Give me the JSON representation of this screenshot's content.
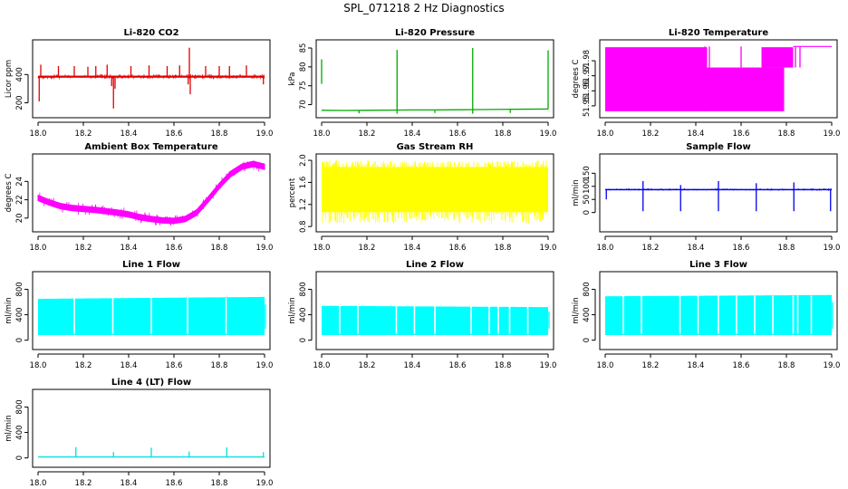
{
  "figure_title": "SPL_071218  2 Hz Diagnostics",
  "chart_data": [
    {
      "type": "line",
      "title": "Li-820 CO2",
      "ylabel": "Licor ppm",
      "color": "#e00000",
      "xlim": [
        18.0,
        19.0
      ],
      "ylim": [
        120,
        620
      ],
      "xticks": [
        18.0,
        18.2,
        18.4,
        18.6,
        18.8,
        19.0
      ],
      "xtick_labels": [
        "18.0",
        "18.2",
        "18.4",
        "18.6",
        "18.8",
        "19.0"
      ],
      "yticks": [
        200,
        400
      ],
      "ytick_labels": [
        "200",
        "400"
      ],
      "series": {
        "kind": "noise_band",
        "x_start": 18.0,
        "x_end": 19.0,
        "center": 385,
        "half_width": 18,
        "noise_seed": 11,
        "noise_count": 330
      },
      "spikes": [
        {
          "x": 18.005,
          "y0": 385,
          "y1": 210
        },
        {
          "x": 18.012,
          "y0": 385,
          "y1": 470
        },
        {
          "x": 18.09,
          "y0": 385,
          "y1": 460
        },
        {
          "x": 18.16,
          "y0": 385,
          "y1": 460
        },
        {
          "x": 18.22,
          "y0": 385,
          "y1": 455
        },
        {
          "x": 18.255,
          "y0": 385,
          "y1": 460
        },
        {
          "x": 18.305,
          "y0": 385,
          "y1": 470
        },
        {
          "x": 18.325,
          "y0": 385,
          "y1": 318
        },
        {
          "x": 18.333,
          "y0": 385,
          "y1": 160
        },
        {
          "x": 18.34,
          "y0": 385,
          "y1": 300
        },
        {
          "x": 18.41,
          "y0": 385,
          "y1": 460
        },
        {
          "x": 18.49,
          "y0": 385,
          "y1": 465
        },
        {
          "x": 18.57,
          "y0": 385,
          "y1": 460
        },
        {
          "x": 18.625,
          "y0": 385,
          "y1": 465
        },
        {
          "x": 18.663,
          "y0": 385,
          "y1": 330
        },
        {
          "x": 18.668,
          "y0": 385,
          "y1": 590
        },
        {
          "x": 18.672,
          "y0": 385,
          "y1": 260
        },
        {
          "x": 18.74,
          "y0": 385,
          "y1": 460
        },
        {
          "x": 18.8,
          "y0": 385,
          "y1": 460
        },
        {
          "x": 18.845,
          "y0": 385,
          "y1": 460
        },
        {
          "x": 18.92,
          "y0": 385,
          "y1": 465
        },
        {
          "x": 18.995,
          "y0": 385,
          "y1": 330
        }
      ]
    },
    {
      "type": "line",
      "title": "Li-820 Pressure",
      "ylabel": "kPa",
      "color": "#00aa00",
      "xlim": [
        18.0,
        19.0
      ],
      "ylim": [
        67.5,
        86.2
      ],
      "xticks": [
        18.0,
        18.2,
        18.4,
        18.6,
        18.8,
        19.0
      ],
      "xtick_labels": [
        "18.0",
        "18.2",
        "18.4",
        "18.6",
        "18.8",
        "19.0"
      ],
      "yticks": [
        70,
        75,
        80,
        85
      ],
      "ytick_labels": [
        "70",
        "75",
        "80",
        "85"
      ],
      "series": {
        "kind": "path",
        "x": [
          18.0,
          18.1,
          18.2,
          18.3,
          18.4,
          18.5,
          18.6,
          18.7,
          18.8,
          18.9,
          19.0
        ],
        "y": [
          68.5,
          68.45,
          68.5,
          68.55,
          68.6,
          68.6,
          68.65,
          68.7,
          68.75,
          68.8,
          68.85
        ]
      },
      "spikes": [
        {
          "x": 18.0,
          "y0": 75.5,
          "y1": 82.0
        },
        {
          "x": 18.165,
          "y0": 68.5,
          "y1": 67.7
        },
        {
          "x": 18.333,
          "y0": 68.5,
          "y1": 84.5
        },
        {
          "x": 18.333,
          "y0": 68.5,
          "y1": 67.6
        },
        {
          "x": 18.5,
          "y0": 68.6,
          "y1": 67.8
        },
        {
          "x": 18.667,
          "y0": 68.6,
          "y1": 85.0
        },
        {
          "x": 18.667,
          "y0": 68.6,
          "y1": 67.6
        },
        {
          "x": 18.833,
          "y0": 68.7,
          "y1": 67.8
        },
        {
          "x": 19.0,
          "y0": 68.8,
          "y1": 84.4
        }
      ]
    },
    {
      "type": "line",
      "title": "Li-820 Temperature",
      "ylabel": "degrees C",
      "color": "#ff00ff",
      "xlim": [
        18.0,
        19.0
      ],
      "ylim": [
        51.9445,
        51.9915
      ],
      "xticks": [
        18.0,
        18.2,
        18.4,
        18.6,
        18.8,
        19.0
      ],
      "xtick_labels": [
        "18.0",
        "18.2",
        "18.4",
        "18.6",
        "18.8",
        "19.0"
      ],
      "yticks": [
        51.95,
        51.96,
        51.97,
        51.98
      ],
      "ytick_labels": [
        "51.95",
        "51.96",
        "51.97",
        "51.98"
      ],
      "fills": [
        {
          "x0": 18.0,
          "x1": 18.45,
          "y0": 51.9464,
          "y1": 51.989
        },
        {
          "x0": 18.45,
          "x1": 18.79,
          "y0": 51.9464,
          "y1": 51.9755
        },
        {
          "x0": 18.69,
          "x1": 18.83,
          "y0": 51.9755,
          "y1": 51.989
        }
      ],
      "hlines": [
        {
          "x0": 18.83,
          "x1": 19.0,
          "y": 51.9895
        }
      ],
      "spikes": [
        {
          "x": 18.44,
          "y0": 51.9464,
          "y1": 51.9895
        },
        {
          "x": 18.46,
          "y0": 51.9755,
          "y1": 51.9895
        },
        {
          "x": 18.6,
          "y0": 51.9755,
          "y1": 51.9895
        },
        {
          "x": 18.84,
          "y0": 51.9755,
          "y1": 51.9895
        },
        {
          "x": 18.86,
          "y0": 51.9755,
          "y1": 51.9895
        }
      ]
    },
    {
      "type": "area",
      "title": "Ambient Box Temperature",
      "ylabel": "degrees C",
      "color": "#ff00ff",
      "xlim": [
        18.0,
        19.0
      ],
      "ylim": [
        18.9,
        26.6
      ],
      "xticks": [
        18.0,
        18.2,
        18.4,
        18.6,
        18.8,
        19.0
      ],
      "xtick_labels": [
        "18.0",
        "18.2",
        "18.4",
        "18.6",
        "18.8",
        "19.0"
      ],
      "yticks": [
        20,
        22,
        24
      ],
      "ytick_labels": [
        "20",
        "22",
        "24"
      ],
      "series": {
        "kind": "band",
        "x": [
          18.0,
          18.05,
          18.1,
          18.15,
          18.2,
          18.25,
          18.3,
          18.35,
          18.4,
          18.45,
          18.5,
          18.55,
          18.6,
          18.65,
          18.7,
          18.75,
          18.8,
          18.85,
          18.9,
          18.95,
          19.0
        ],
        "center": [
          22.2,
          21.7,
          21.3,
          21.1,
          21.0,
          20.9,
          20.75,
          20.6,
          20.4,
          20.1,
          19.9,
          19.75,
          19.7,
          19.9,
          20.6,
          22.0,
          23.5,
          24.8,
          25.6,
          25.9,
          25.6
        ],
        "half_width": 0.3,
        "noise_seed": 7,
        "noise_count": 180
      }
    },
    {
      "type": "line",
      "title": "Gas Stream RH",
      "ylabel": "percent",
      "color": "#ffff00",
      "xlim": [
        18.0,
        19.0
      ],
      "ylim": [
        0.77,
        2.05
      ],
      "xticks": [
        18.0,
        18.2,
        18.4,
        18.6,
        18.8,
        19.0
      ],
      "xtick_labels": [
        "18.0",
        "18.2",
        "18.4",
        "18.6",
        "18.8",
        "19.0"
      ],
      "yticks": [
        0.8,
        1.2,
        1.6,
        2.0
      ],
      "ytick_labels": [
        "0.8",
        "1.2",
        "1.6",
        "2.0"
      ],
      "fills": [
        {
          "x0": 18.0,
          "x1": 19.0,
          "y0": 1.06,
          "y1": 1.88
        }
      ],
      "series": {
        "kind": "noise_lines",
        "x_start": 18.0,
        "x_end": 19.0,
        "lo": 0.85,
        "hi": 2.0,
        "mid_lo": 1.06,
        "mid_hi": 1.88,
        "noise_seed": 3,
        "noise_count": 420
      }
    },
    {
      "type": "line",
      "title": "Sample Flow",
      "ylabel": "ml/min",
      "color": "#0000ee",
      "xlim": [
        18.0,
        19.0
      ],
      "ylim": [
        -60,
        210
      ],
      "xticks": [
        18.0,
        18.2,
        18.4,
        18.6,
        18.8,
        19.0
      ],
      "xtick_labels": [
        "18.0",
        "18.2",
        "18.4",
        "18.6",
        "18.8",
        "19.0"
      ],
      "yticks": [
        0,
        50,
        100,
        150
      ],
      "ytick_labels": [
        "0",
        "50",
        "100",
        "150"
      ],
      "series": {
        "kind": "noise_band",
        "x_start": 18.0,
        "x_end": 19.0,
        "center": 88,
        "half_width": 5,
        "noise_seed": 5,
        "noise_count": 260
      },
      "spikes": [
        {
          "x": 18.005,
          "y0": 88,
          "y1": 50
        },
        {
          "x": 18.167,
          "y0": 88,
          "y1": 120
        },
        {
          "x": 18.167,
          "y0": 88,
          "y1": 5
        },
        {
          "x": 18.333,
          "y0": 88,
          "y1": 105
        },
        {
          "x": 18.333,
          "y0": 88,
          "y1": 5
        },
        {
          "x": 18.5,
          "y0": 88,
          "y1": 120
        },
        {
          "x": 18.5,
          "y0": 88,
          "y1": 5
        },
        {
          "x": 18.667,
          "y0": 88,
          "y1": 112
        },
        {
          "x": 18.667,
          "y0": 88,
          "y1": 5
        },
        {
          "x": 18.833,
          "y0": 88,
          "y1": 115
        },
        {
          "x": 18.833,
          "y0": 88,
          "y1": 5
        },
        {
          "x": 18.995,
          "y0": 88,
          "y1": 5
        }
      ]
    },
    {
      "type": "area",
      "title": "Line 1 Flow",
      "ylabel": "ml/min",
      "color": "#00ffff",
      "xlim": [
        18.0,
        19.0
      ],
      "ylim": [
        -90,
        1020
      ],
      "xticks": [
        18.0,
        18.2,
        18.4,
        18.6,
        18.8,
        19.0
      ],
      "xtick_labels": [
        "18.0",
        "18.2",
        "18.4",
        "18.6",
        "18.8",
        "19.0"
      ],
      "yticks": [
        0,
        400,
        800
      ],
      "ytick_labels": [
        "0",
        "400",
        "800"
      ],
      "series": {
        "kind": "block",
        "x_start": 18.0,
        "x_end": 19.0,
        "lo": 80,
        "hi": 650,
        "hi_end": 680,
        "gaps": [
          18.16,
          18.33,
          18.5,
          18.66,
          18.83
        ],
        "right_tail": 560
      }
    },
    {
      "type": "area",
      "title": "Line 2 Flow",
      "ylabel": "ml/min",
      "color": "#00ffff",
      "xlim": [
        18.0,
        19.0
      ],
      "ylim": [
        -90,
        1020
      ],
      "xticks": [
        18.0,
        18.2,
        18.4,
        18.6,
        18.8,
        19.0
      ],
      "xtick_labels": [
        "18.0",
        "18.2",
        "18.4",
        "18.6",
        "18.8",
        "19.0"
      ],
      "yticks": [
        0,
        400,
        800
      ],
      "ytick_labels": [
        "0",
        "400",
        "800"
      ],
      "series": {
        "kind": "block",
        "x_start": 18.0,
        "x_end": 19.0,
        "lo": 80,
        "hi": 540,
        "hi_end": 520,
        "gaps": [
          18.08,
          18.16,
          18.33,
          18.41,
          18.5,
          18.66,
          18.74,
          18.78,
          18.83,
          18.91
        ],
        "right_tail": 450
      }
    },
    {
      "type": "area",
      "title": "Line 3 Flow",
      "ylabel": "ml/min",
      "color": "#00ffff",
      "xlim": [
        18.0,
        19.0
      ],
      "ylim": [
        -90,
        1020
      ],
      "xticks": [
        18.0,
        18.2,
        18.4,
        18.6,
        18.8,
        19.0
      ],
      "xtick_labels": [
        "18.0",
        "18.2",
        "18.4",
        "18.6",
        "18.8",
        "19.0"
      ],
      "yticks": [
        0,
        400,
        800
      ],
      "ytick_labels": [
        "0",
        "400",
        "800"
      ],
      "series": {
        "kind": "block",
        "x_start": 18.0,
        "x_end": 19.0,
        "lo": 80,
        "hi": 690,
        "hi_end": 710,
        "gaps": [
          18.08,
          18.16,
          18.33,
          18.41,
          18.5,
          18.58,
          18.66,
          18.74,
          18.83,
          18.85,
          18.91
        ],
        "right_tail": 600
      }
    },
    {
      "type": "line",
      "title": "Line 4 (LT) Flow",
      "ylabel": "ml/min",
      "color": "#00dddd",
      "xlim": [
        18.0,
        19.0
      ],
      "ylim": [
        -90,
        1020
      ],
      "xticks": [
        18.0,
        18.2,
        18.4,
        18.6,
        18.8,
        19.0
      ],
      "xtick_labels": [
        "18.0",
        "18.2",
        "18.4",
        "18.6",
        "18.8",
        "19.0"
      ],
      "yticks": [
        0,
        400,
        800
      ],
      "ytick_labels": [
        "0",
        "400",
        "800"
      ],
      "series": {
        "kind": "path",
        "x": [
          18.0,
          19.0
        ],
        "y": [
          15,
          15
        ]
      },
      "spikes": [
        {
          "x": 18.167,
          "y0": 15,
          "y1": 170
        },
        {
          "x": 18.333,
          "y0": 15,
          "y1": 90
        },
        {
          "x": 18.5,
          "y0": 15,
          "y1": 160
        },
        {
          "x": 18.667,
          "y0": 15,
          "y1": 100
        },
        {
          "x": 18.833,
          "y0": 15,
          "y1": 165
        },
        {
          "x": 18.995,
          "y0": 15,
          "y1": 90
        }
      ]
    }
  ]
}
